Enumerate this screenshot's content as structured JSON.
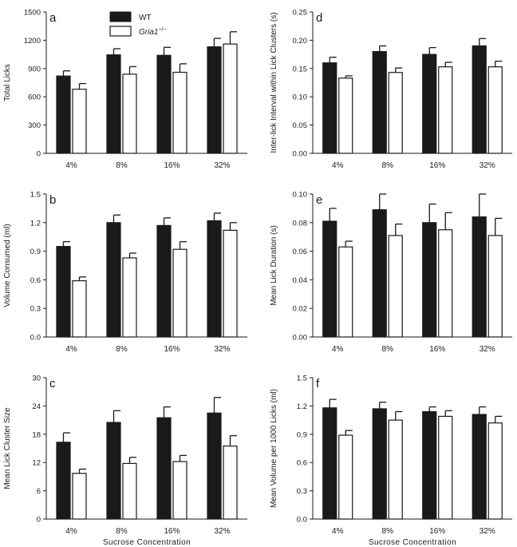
{
  "chart_data": [
    {
      "panel": "a",
      "type": "bar",
      "categories": [
        "4%",
        "8%",
        "16%",
        "32%"
      ],
      "ylabel": "Total Licks",
      "xlabel": "",
      "ylim": [
        0,
        1500
      ],
      "yticks": [
        0,
        300,
        600,
        900,
        1200,
        1500
      ],
      "series": [
        {
          "name": "WT",
          "values": [
            820,
            1045,
            1040,
            1130
          ],
          "err": [
            55,
            65,
            85,
            90
          ]
        },
        {
          "name": "Gria1",
          "values": [
            680,
            840,
            860,
            1160
          ],
          "err": [
            60,
            80,
            90,
            130
          ]
        }
      ]
    },
    {
      "panel": "d",
      "type": "bar",
      "categories": [
        "4%",
        "8%",
        "16%",
        "32%"
      ],
      "ylabel": "Inter-lick Interval within Lick Clusters (s)",
      "xlabel": "",
      "ylim": [
        0,
        0.25
      ],
      "yticks": [
        0.0,
        0.05,
        0.1,
        0.15,
        0.2,
        0.25
      ],
      "tick_decimals": 2,
      "series": [
        {
          "name": "WT",
          "values": [
            0.16,
            0.18,
            0.175,
            0.19
          ],
          "err": [
            0.01,
            0.01,
            0.012,
            0.013
          ]
        },
        {
          "name": "Gria1",
          "values": [
            0.133,
            0.143,
            0.153,
            0.153
          ],
          "err": [
            0.004,
            0.008,
            0.008,
            0.01
          ]
        }
      ]
    },
    {
      "panel": "b",
      "type": "bar",
      "categories": [
        "4%",
        "8%",
        "16%",
        "32%"
      ],
      "ylabel": "Volume Consumed (ml)",
      "xlabel": "",
      "ylim": [
        0,
        1.5
      ],
      "yticks": [
        0.0,
        0.3,
        0.6,
        0.9,
        1.2,
        1.5
      ],
      "tick_decimals": 1,
      "series": [
        {
          "name": "WT",
          "values": [
            0.95,
            1.2,
            1.17,
            1.22
          ],
          "err": [
            0.05,
            0.08,
            0.08,
            0.08
          ]
        },
        {
          "name": "Gria1",
          "values": [
            0.59,
            0.83,
            0.92,
            1.12
          ],
          "err": [
            0.04,
            0.05,
            0.08,
            0.08
          ]
        }
      ]
    },
    {
      "panel": "e",
      "type": "bar",
      "categories": [
        "4%",
        "8%",
        "16%",
        "32%"
      ],
      "ylabel": "Mean Lick Duration (s)",
      "xlabel": "",
      "ylim": [
        0,
        0.1
      ],
      "yticks": [
        0.0,
        0.02,
        0.04,
        0.06,
        0.08,
        0.1
      ],
      "tick_decimals": 2,
      "series": [
        {
          "name": "WT",
          "values": [
            0.081,
            0.089,
            0.08,
            0.084
          ],
          "err": [
            0.009,
            0.011,
            0.013,
            0.016
          ]
        },
        {
          "name": "Gria1",
          "values": [
            0.063,
            0.071,
            0.075,
            0.071
          ],
          "err": [
            0.004,
            0.008,
            0.012,
            0.012
          ]
        }
      ]
    },
    {
      "panel": "c",
      "type": "bar",
      "categories": [
        "4%",
        "8%",
        "16%",
        "32%"
      ],
      "ylabel": "Mean Lick Cluster Size",
      "xlabel": "Sucrose Concentration",
      "ylim": [
        0,
        30
      ],
      "yticks": [
        0,
        6,
        12,
        18,
        24,
        30
      ],
      "series": [
        {
          "name": "WT",
          "values": [
            16.3,
            20.5,
            21.5,
            22.5
          ],
          "err": [
            2.0,
            2.5,
            2.3,
            3.3
          ]
        },
        {
          "name": "Gria1",
          "values": [
            9.7,
            11.8,
            12.2,
            15.5
          ],
          "err": [
            0.9,
            1.3,
            1.3,
            2.2
          ]
        }
      ]
    },
    {
      "panel": "f",
      "type": "bar",
      "categories": [
        "4%",
        "8%",
        "16%",
        "32%"
      ],
      "ylabel": "Mean Volume per 1000 Licks (ml)",
      "xlabel": "Sucrose Concentration",
      "ylim": [
        0,
        1.5
      ],
      "yticks": [
        0.0,
        0.3,
        0.6,
        0.9,
        1.2,
        1.5
      ],
      "tick_decimals": 1,
      "series": [
        {
          "name": "WT",
          "values": [
            1.18,
            1.17,
            1.14,
            1.11
          ],
          "err": [
            0.09,
            0.07,
            0.05,
            0.08
          ]
        },
        {
          "name": "Gria1",
          "values": [
            0.89,
            1.05,
            1.09,
            1.02
          ],
          "err": [
            0.05,
            0.09,
            0.06,
            0.07
          ]
        }
      ]
    }
  ],
  "legend": {
    "entries": [
      {
        "label": "WT",
        "fill": "#1a1a1a"
      },
      {
        "label": "Gria1",
        "superscript": "−/−",
        "fill": "#ffffff"
      }
    ]
  },
  "colors": {
    "wt": "#1a1a1a",
    "ko": "#ffffff",
    "axis": "#1a1a1a"
  }
}
